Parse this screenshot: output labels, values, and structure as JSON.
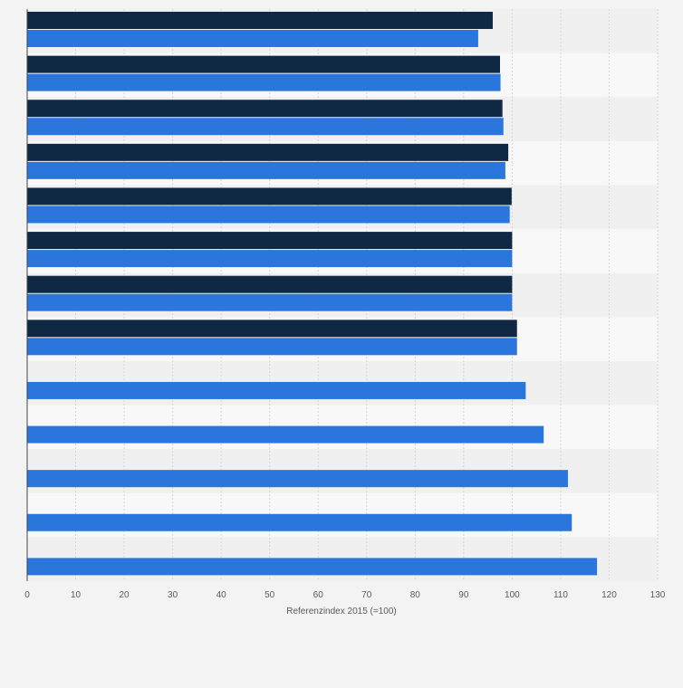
{
  "chart_data": {
    "type": "bar",
    "orientation": "horizontal",
    "categories": [
      "",
      "",
      "",
      "",
      "",
      "",
      "",
      "",
      "",
      "",
      "",
      "",
      ""
    ],
    "series": [
      {
        "color": "#0f2844",
        "values": [
          96,
          97.5,
          98,
          99.2,
          99.9,
          100,
          100,
          101,
          null,
          null,
          null,
          null,
          null
        ]
      },
      {
        "color": "#2a76dd",
        "values": [
          93,
          97.6,
          98.2,
          98.6,
          99.5,
          100,
          100,
          101,
          102.8,
          106.5,
          111.5,
          112.3,
          117.5
        ]
      }
    ],
    "xlabel": "Referenzindex 2015 (=100)",
    "xlim": [
      0,
      130
    ],
    "xticks": [
      0,
      10,
      20,
      30,
      40,
      50,
      60,
      70,
      80,
      90,
      100,
      110,
      120,
      130
    ],
    "grid": true,
    "legend": "none"
  }
}
